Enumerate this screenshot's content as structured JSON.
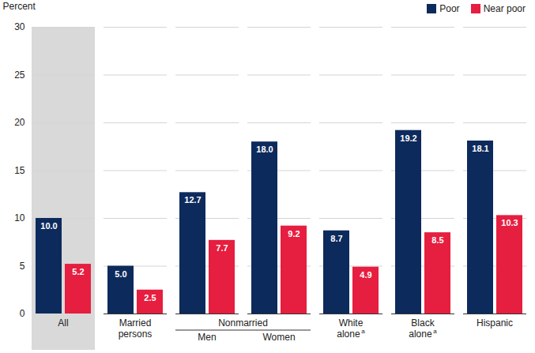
{
  "chart_data": {
    "type": "bar",
    "y_label": "Percent",
    "categories": [
      "All",
      "Married persons",
      "Men",
      "Women",
      "White alone",
      "Black alone",
      "Hispanic"
    ],
    "category_footnotes": [
      null,
      null,
      null,
      null,
      "a",
      "a",
      null
    ],
    "groups": [
      {
        "label": "Nonmarried",
        "categories": [
          "Men",
          "Women"
        ]
      }
    ],
    "series": [
      {
        "name": "Poor",
        "color": "#0d2a5c",
        "values": [
          10.0,
          5.0,
          12.7,
          18.0,
          8.7,
          19.2,
          18.1
        ],
        "value_labels": [
          "10.0",
          "5.0",
          "12.7",
          "18.0",
          "8.7",
          "19.2",
          "18.1"
        ]
      },
      {
        "name": "Near poor",
        "color": "#e61e3f",
        "values": [
          5.2,
          2.5,
          7.7,
          9.2,
          4.9,
          8.5,
          10.3
        ],
        "value_labels": [
          "5.2",
          "2.5",
          "7.7",
          "9.2",
          "4.9",
          "8.5",
          "10.3"
        ]
      }
    ],
    "ylim": [
      0,
      30
    ],
    "yticks": [
      0,
      5,
      10,
      15,
      20,
      25,
      30
    ],
    "grid": true,
    "data_labels": true,
    "legend": "top-right"
  }
}
